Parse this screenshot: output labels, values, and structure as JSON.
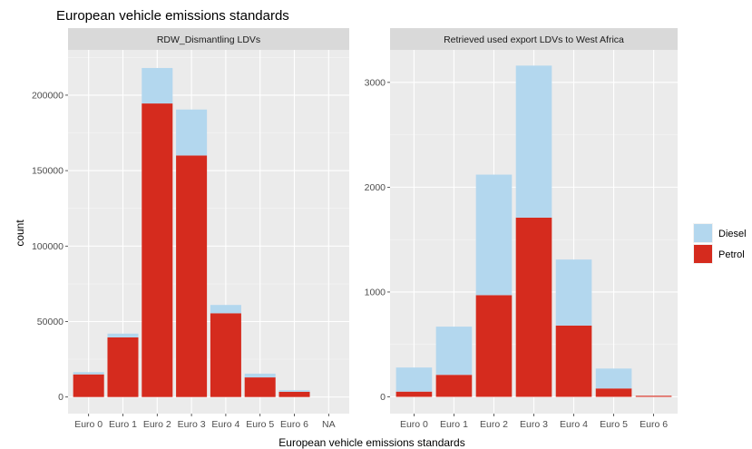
{
  "chart_data": {
    "type": "bar",
    "stacked": true,
    "title": "European vehicle emissions standards",
    "xlabel": "European vehicle emissions standards",
    "ylabel": "count",
    "legend": {
      "position": "right",
      "entries": [
        {
          "name": "Diesel",
          "color": "#B3D7EE"
        },
        {
          "name": "Petrol",
          "color": "#D52B1E"
        }
      ]
    },
    "grid": true,
    "facets": [
      {
        "title": "RDW_Dismantling LDVs",
        "categories": [
          "Euro 0",
          "Euro 1",
          "Euro 2",
          "Euro 3",
          "Euro 4",
          "Euro 5",
          "Euro 6",
          "NA"
        ],
        "yticks": [
          0,
          50000,
          100000,
          150000,
          200000
        ],
        "ylim": [
          -11000,
          230000
        ],
        "series": [
          {
            "name": "Petrol",
            "values": [
              15000,
              39500,
              194500,
              160000,
              55500,
              13000,
              3500,
              0
            ]
          },
          {
            "name": "Diesel",
            "values": [
              1500,
              2500,
              23500,
              30500,
              5500,
              2500,
              1000,
              0
            ]
          }
        ]
      },
      {
        "title": "Retrieved used export LDVs to West Africa",
        "categories": [
          "Euro 0",
          "Euro 1",
          "Euro 2",
          "Euro 3",
          "Euro 4",
          "Euro 5",
          "Euro 6"
        ],
        "yticks": [
          0,
          1000,
          2000,
          3000
        ],
        "ylim": [
          -160,
          3310
        ],
        "series": [
          {
            "name": "Petrol",
            "values": [
              50,
              210,
              970,
              1710,
              680,
              80,
              10
            ]
          },
          {
            "name": "Diesel",
            "values": [
              230,
              460,
              1150,
              1450,
              630,
              190,
              0
            ]
          }
        ]
      }
    ]
  }
}
